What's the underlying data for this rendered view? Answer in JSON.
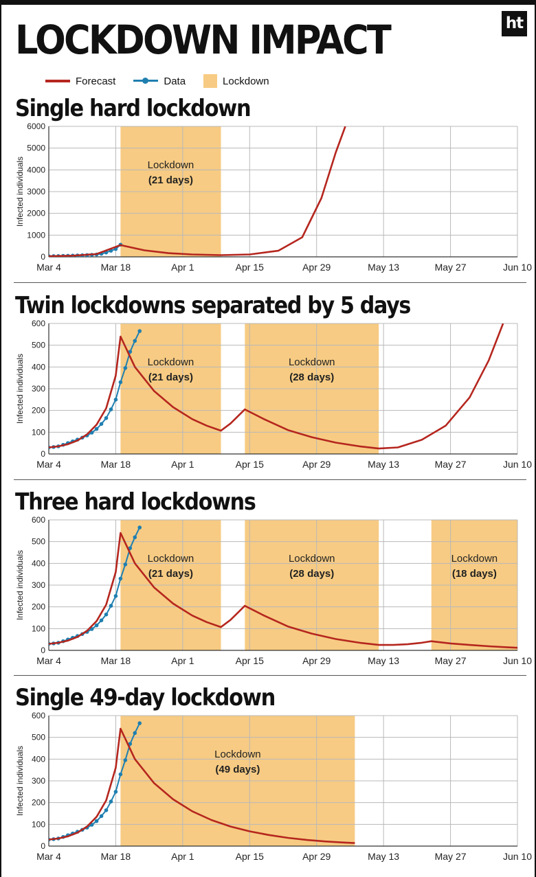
{
  "title": "LOCKDOWN IMPACT",
  "logo": "ht",
  "legend": {
    "forecast": "Forecast",
    "data": "Data",
    "lockdown": "Lockdown"
  },
  "colors": {
    "forecast": "#b5261e",
    "data": "#1f7fb0",
    "lockdown": "#f7cb83",
    "grid": "#b8b8b8"
  },
  "chart_data": [
    {
      "type": "line",
      "title": "Single hard lockdown",
      "ylabel": "Infected individuals",
      "xlabel": "",
      "x_ticks": [
        "Mar 4",
        "Mar 18",
        "Apr 1",
        "Apr 15",
        "Apr 29",
        "May 13",
        "May 27",
        "Jun 10"
      ],
      "x_range_days": [
        0,
        98
      ],
      "ylim": [
        0,
        6000
      ],
      "y_ticks": [
        0,
        1000,
        2000,
        3000,
        4000,
        5000,
        6000
      ],
      "grid": true,
      "lockdowns": [
        {
          "start": 15,
          "end": 36,
          "label": "Lockdown",
          "days": "(21 days)"
        }
      ],
      "series": [
        {
          "name": "Forecast",
          "points": [
            [
              0,
              30
            ],
            [
              5,
              55
            ],
            [
              10,
              130
            ],
            [
              15,
              540
            ],
            [
              20,
              300
            ],
            [
              25,
              170
            ],
            [
              30,
              110
            ],
            [
              36,
              80
            ],
            [
              42,
              110
            ],
            [
              48,
              280
            ],
            [
              53,
              900
            ],
            [
              57,
              2700
            ],
            [
              60,
              4800
            ],
            [
              62,
              6000
            ]
          ]
        },
        {
          "name": "Data",
          "points": [
            [
              0,
              30
            ],
            [
              1,
              34
            ],
            [
              2,
              38
            ],
            [
              3,
              44
            ],
            [
              4,
              50
            ],
            [
              5,
              57
            ],
            [
              6,
              64
            ],
            [
              7,
              72
            ],
            [
              8,
              82
            ],
            [
              9,
              93
            ],
            [
              10,
              110
            ],
            [
              11,
              140
            ],
            [
              12,
              200
            ],
            [
              13,
              280
            ],
            [
              14,
              360
            ],
            [
              15,
              560
            ]
          ]
        }
      ]
    },
    {
      "type": "line",
      "title": "Twin lockdowns separated by 5 days",
      "ylabel": "Infected individuals",
      "xlabel": "",
      "x_ticks": [
        "Mar 4",
        "Mar 18",
        "Apr 1",
        "Apr 15",
        "Apr 29",
        "May 13",
        "May 27",
        "Jun 10"
      ],
      "x_range_days": [
        0,
        98
      ],
      "ylim": [
        0,
        600
      ],
      "y_ticks": [
        0,
        100,
        200,
        300,
        400,
        500,
        600
      ],
      "grid": true,
      "lockdowns": [
        {
          "start": 15,
          "end": 36,
          "label": "Lockdown",
          "days": "(21 days)"
        },
        {
          "start": 41,
          "end": 69,
          "label": "Lockdown",
          "days": "(28 days)"
        }
      ],
      "series": [
        {
          "name": "Forecast",
          "points": [
            [
              0,
              30
            ],
            [
              2,
              35
            ],
            [
              4,
              45
            ],
            [
              6,
              62
            ],
            [
              8,
              90
            ],
            [
              10,
              135
            ],
            [
              12,
              210
            ],
            [
              14,
              360
            ],
            [
              15,
              540
            ],
            [
              18,
              400
            ],
            [
              22,
              290
            ],
            [
              26,
              215
            ],
            [
              30,
              160
            ],
            [
              33,
              130
            ],
            [
              36,
              107
            ],
            [
              38,
              140
            ],
            [
              41,
              205
            ],
            [
              45,
              160
            ],
            [
              50,
              110
            ],
            [
              55,
              77
            ],
            [
              60,
              52
            ],
            [
              65,
              35
            ],
            [
              69,
              25
            ],
            [
              73,
              30
            ],
            [
              78,
              65
            ],
            [
              83,
              130
            ],
            [
              88,
              260
            ],
            [
              92,
              430
            ],
            [
              95,
              600
            ]
          ]
        },
        {
          "name": "Data",
          "points": [
            [
              0,
              30
            ],
            [
              1,
              32
            ],
            [
              2,
              35
            ],
            [
              3,
              42
            ],
            [
              4,
              50
            ],
            [
              5,
              58
            ],
            [
              6,
              66
            ],
            [
              7,
              75
            ],
            [
              8,
              85
            ],
            [
              9,
              98
            ],
            [
              10,
              115
            ],
            [
              11,
              138
            ],
            [
              12,
              165
            ],
            [
              13,
              205
            ],
            [
              14,
              250
            ],
            [
              15,
              330
            ],
            [
              16,
              395
            ],
            [
              17,
              470
            ],
            [
              18,
              520
            ],
            [
              19,
              565
            ]
          ]
        }
      ]
    },
    {
      "type": "line",
      "title": "Three hard lockdowns",
      "ylabel": "Infected individuals",
      "xlabel": "",
      "x_ticks": [
        "Mar 4",
        "Mar 18",
        "Apr 1",
        "Apr 15",
        "Apr 29",
        "May 13",
        "May 27",
        "Jun 10"
      ],
      "x_range_days": [
        0,
        98
      ],
      "ylim": [
        0,
        600
      ],
      "y_ticks": [
        0,
        100,
        200,
        300,
        400,
        500,
        600
      ],
      "grid": true,
      "lockdowns": [
        {
          "start": 15,
          "end": 36,
          "label": "Lockdown",
          "days": "(21 days)"
        },
        {
          "start": 41,
          "end": 69,
          "label": "Lockdown",
          "days": "(28 days)"
        },
        {
          "start": 80,
          "end": 98,
          "label": "Lockdown",
          "days": "(18 days)"
        }
      ],
      "series": [
        {
          "name": "Forecast",
          "points": [
            [
              0,
              30
            ],
            [
              2,
              35
            ],
            [
              4,
              45
            ],
            [
              6,
              62
            ],
            [
              8,
              90
            ],
            [
              10,
              135
            ],
            [
              12,
              210
            ],
            [
              14,
              360
            ],
            [
              15,
              540
            ],
            [
              18,
              400
            ],
            [
              22,
              290
            ],
            [
              26,
              215
            ],
            [
              30,
              160
            ],
            [
              33,
              130
            ],
            [
              36,
              107
            ],
            [
              38,
              140
            ],
            [
              41,
              205
            ],
            [
              45,
              160
            ],
            [
              50,
              110
            ],
            [
              55,
              77
            ],
            [
              60,
              52
            ],
            [
              65,
              35
            ],
            [
              69,
              25
            ],
            [
              72,
              25
            ],
            [
              75,
              28
            ],
            [
              78,
              35
            ],
            [
              80,
              42
            ],
            [
              84,
              32
            ],
            [
              88,
              25
            ],
            [
              92,
              19
            ],
            [
              96,
              14
            ],
            [
              98,
              12
            ]
          ]
        },
        {
          "name": "Data",
          "points": [
            [
              0,
              30
            ],
            [
              1,
              32
            ],
            [
              2,
              35
            ],
            [
              3,
              42
            ],
            [
              4,
              50
            ],
            [
              5,
              58
            ],
            [
              6,
              66
            ],
            [
              7,
              75
            ],
            [
              8,
              85
            ],
            [
              9,
              98
            ],
            [
              10,
              115
            ],
            [
              11,
              138
            ],
            [
              12,
              165
            ],
            [
              13,
              205
            ],
            [
              14,
              250
            ],
            [
              15,
              330
            ],
            [
              16,
              395
            ],
            [
              17,
              470
            ],
            [
              18,
              520
            ],
            [
              19,
              565
            ]
          ]
        }
      ]
    },
    {
      "type": "line",
      "title": "Single 49-day lockdown",
      "ylabel": "Infected individuals",
      "xlabel": "",
      "x_ticks": [
        "Mar 4",
        "Mar 18",
        "Apr 1",
        "Apr 15",
        "Apr 29",
        "May 13",
        "May 27",
        "Jun 10"
      ],
      "x_range_days": [
        0,
        98
      ],
      "ylim": [
        0,
        600
      ],
      "y_ticks": [
        0,
        100,
        200,
        300,
        400,
        500,
        600
      ],
      "grid": true,
      "lockdowns": [
        {
          "start": 15,
          "end": 64,
          "label": "Lockdown",
          "days": "(49 days)"
        }
      ],
      "series": [
        {
          "name": "Forecast",
          "points": [
            [
              0,
              30
            ],
            [
              2,
              35
            ],
            [
              4,
              45
            ],
            [
              6,
              62
            ],
            [
              8,
              90
            ],
            [
              10,
              135
            ],
            [
              12,
              210
            ],
            [
              14,
              360
            ],
            [
              15,
              540
            ],
            [
              18,
              400
            ],
            [
              22,
              290
            ],
            [
              26,
              215
            ],
            [
              30,
              160
            ],
            [
              34,
              120
            ],
            [
              38,
              90
            ],
            [
              42,
              68
            ],
            [
              46,
              51
            ],
            [
              50,
              38
            ],
            [
              54,
              28
            ],
            [
              58,
              21
            ],
            [
              62,
              16
            ],
            [
              64,
              14
            ]
          ]
        },
        {
          "name": "Data",
          "points": [
            [
              0,
              30
            ],
            [
              1,
              32
            ],
            [
              2,
              35
            ],
            [
              3,
              42
            ],
            [
              4,
              50
            ],
            [
              5,
              58
            ],
            [
              6,
              66
            ],
            [
              7,
              75
            ],
            [
              8,
              85
            ],
            [
              9,
              98
            ],
            [
              10,
              115
            ],
            [
              11,
              138
            ],
            [
              12,
              165
            ],
            [
              13,
              205
            ],
            [
              14,
              250
            ],
            [
              15,
              330
            ],
            [
              16,
              395
            ],
            [
              17,
              470
            ],
            [
              18,
              520
            ],
            [
              19,
              565
            ]
          ]
        }
      ]
    }
  ]
}
